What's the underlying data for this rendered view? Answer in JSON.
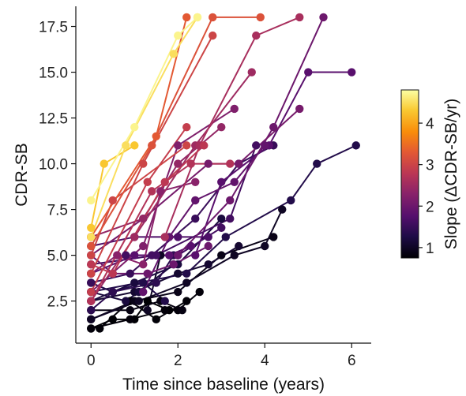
{
  "chart_data": {
    "type": "line",
    "xlabel": "Time since baseline (years)",
    "ylabel": "CDR-SB",
    "xlim": [
      -0.35,
      6.45
    ],
    "ylim": [
      0.2,
      18.6
    ],
    "xticks": [
      0,
      2,
      4,
      6
    ],
    "yticks": [
      2.5,
      5.0,
      7.5,
      10.0,
      12.5,
      15.0,
      17.5
    ],
    "xtick_labels": [
      "0",
      "2",
      "4",
      "6"
    ],
    "ytick_labels": [
      "2.5",
      "5.0",
      "7.5",
      "10.0",
      "12.5",
      "15.0",
      "17.5"
    ],
    "grid": false,
    "colorbar": {
      "label": "Slope (ΔCDR-SB/yr)",
      "range": [
        0.75,
        4.8
      ],
      "ticks": [
        1,
        2,
        3,
        4
      ],
      "tick_labels": [
        "1",
        "2",
        "3",
        "4"
      ],
      "colormap": "inferno",
      "position": "right"
    },
    "series": [
      {
        "slope": 4.7,
        "x": [
          0.0,
          1.0,
          2.0,
          2.45
        ],
        "y": [
          8.0,
          12.0,
          17.0,
          18.0
        ]
      },
      {
        "slope": 4.3,
        "x": [
          0.0,
          0.3,
          1.0
        ],
        "y": [
          6.5,
          10.0,
          11.0
        ]
      },
      {
        "slope": 4.5,
        "x": [
          0.0,
          0.8,
          1.9,
          2.45
        ],
        "y": [
          6.0,
          11.0,
          16.0,
          18.0
        ]
      },
      {
        "slope": 3.2,
        "x": [
          0.0,
          1.4,
          2.8,
          3.9
        ],
        "y": [
          5.5,
          11.0,
          18.0,
          18.0
        ]
      },
      {
        "slope": 3.0,
        "x": [
          0.0,
          1.2,
          2.8
        ],
        "y": [
          4.0,
          10.0,
          17.0
        ]
      },
      {
        "slope": 3.3,
        "x": [
          0.0,
          1.5,
          2.2
        ],
        "y": [
          6.0,
          11.5,
          18.0
        ]
      },
      {
        "slope": 2.9,
        "x": [
          0.0,
          1.3,
          2.2
        ],
        "y": [
          3.0,
          9.0,
          12.0
        ]
      },
      {
        "slope": 3.0,
        "x": [
          0.0,
          0.5,
          2.2
        ],
        "y": [
          5.0,
          8.0,
          11.0
        ]
      },
      {
        "slope": 2.8,
        "x": [
          0.0,
          0.5,
          1.7,
          2.6
        ],
        "y": [
          4.5,
          4.0,
          9.0,
          11.0
        ]
      },
      {
        "slope": 2.6,
        "x": [
          1.7,
          2.5,
          3.8,
          4.8
        ],
        "y": [
          6.0,
          11.0,
          17.0,
          18.0
        ]
      },
      {
        "slope": 2.5,
        "x": [
          0.0,
          1.0,
          2.4,
          3.7
        ],
        "y": [
          2.5,
          6.0,
          11.0,
          15.0
        ]
      },
      {
        "slope": 2.2,
        "x": [
          0.0,
          1.2,
          2.0,
          3.3
        ],
        "y": [
          3.0,
          5.5,
          11.0,
          13.0
        ]
      },
      {
        "slope": 2.0,
        "x": [
          2.0,
          3.2,
          4.2,
          5.35
        ],
        "y": [
          5.0,
          8.0,
          12.0,
          18.0
        ]
      },
      {
        "slope": 1.8,
        "x": [
          2.4,
          3.0,
          4.1,
          5.0,
          6.0
        ],
        "y": [
          5.0,
          9.0,
          11.0,
          15.0,
          15.0
        ]
      },
      {
        "slope": 2.1,
        "x": [
          0.0,
          1.2,
          2.7,
          3.4,
          4.8
        ],
        "y": [
          5.0,
          7.0,
          10.0,
          10.0,
          13.0
        ]
      },
      {
        "slope": 1.9,
        "x": [
          1.2,
          1.8,
          2.4,
          3.3,
          4.0
        ],
        "y": [
          3.0,
          6.0,
          8.0,
          9.0,
          11.0
        ]
      },
      {
        "slope": 2.3,
        "x": [
          0.0,
          0.6,
          1.2,
          1.6,
          2.4
        ],
        "y": [
          4.0,
          5.0,
          4.5,
          8.5,
          9.0
        ]
      },
      {
        "slope": 1.6,
        "x": [
          0.0,
          1.5,
          3.2,
          3.8
        ],
        "y": [
          4.5,
          5.0,
          7.0,
          11.0
        ]
      },
      {
        "slope": 1.5,
        "x": [
          0.0,
          0.9,
          2.4,
          3.4,
          4.2
        ],
        "y": [
          3.5,
          4.0,
          7.0,
          10.0,
          11.0
        ]
      },
      {
        "slope": 1.3,
        "x": [
          0.0,
          2.2,
          3.1,
          4.6,
          5.2,
          6.1
        ],
        "y": [
          3.0,
          4.0,
          6.0,
          8.0,
          10.0,
          11.0
        ]
      },
      {
        "slope": 1.2,
        "x": [
          0.0,
          1.0,
          2.0,
          3.0
        ],
        "y": [
          2.5,
          3.5,
          4.5,
          7.0
        ]
      },
      {
        "slope": 1.0,
        "x": [
          0.0,
          1.1,
          2.2,
          3.3,
          4.0,
          4.4
        ],
        "y": [
          1.5,
          2.5,
          3.5,
          5.0,
          5.5,
          7.5
        ]
      },
      {
        "slope": 1.4,
        "x": [
          0.0,
          0.5,
          1.5,
          1.9
        ],
        "y": [
          2.0,
          3.0,
          3.5,
          5.0
        ]
      },
      {
        "slope": 1.7,
        "x": [
          0.0,
          1.0,
          2.0,
          2.7
        ],
        "y": [
          5.5,
          6.0,
          6.0,
          6.0
        ]
      },
      {
        "slope": 1.8,
        "x": [
          0.0,
          1.0,
          1.8,
          2.3
        ],
        "y": [
          4.0,
          5.0,
          5.0,
          5.5
        ]
      },
      {
        "slope": 1.6,
        "x": [
          0.8,
          1.4,
          2.0,
          3.0
        ],
        "y": [
          5.0,
          5.0,
          5.0,
          6.5
        ]
      },
      {
        "slope": 2.0,
        "x": [
          0.0,
          0.5,
          1.3,
          1.9,
          2.7
        ],
        "y": [
          5.0,
          4.0,
          4.0,
          4.5,
          5.5
        ]
      },
      {
        "slope": 1.1,
        "x": [
          0.0,
          1.0,
          2.0,
          2.7,
          3.4
        ],
        "y": [
          2.5,
          3.0,
          4.0,
          4.5,
          5.5
        ]
      },
      {
        "slope": 0.9,
        "x": [
          0.0,
          1.0,
          2.0,
          3.0,
          4.2
        ],
        "y": [
          1.5,
          2.5,
          3.0,
          5.0,
          6.0
        ]
      },
      {
        "slope": 1.2,
        "x": [
          0.0,
          0.8,
          1.1,
          1.9
        ],
        "y": [
          3.0,
          2.5,
          3.0,
          4.5
        ]
      },
      {
        "slope": 1.0,
        "x": [
          1.3,
          1.6,
          2.0
        ],
        "y": [
          2.0,
          5.0,
          5.0
        ]
      },
      {
        "slope": 1.3,
        "x": [
          0.0,
          0.5,
          1.2,
          1.7
        ],
        "y": [
          3.5,
          3.0,
          3.5,
          2.5
        ]
      },
      {
        "slope": 0.85,
        "x": [
          0.0,
          0.9,
          1.6,
          2.1
        ],
        "y": [
          2.0,
          2.0,
          2.5,
          2.0
        ]
      },
      {
        "slope": 0.8,
        "x": [
          0.0,
          0.9,
          1.7,
          2.0,
          2.5
        ],
        "y": [
          1.0,
          1.5,
          2.0,
          2.0,
          3.0
        ]
      },
      {
        "slope": 0.75,
        "x": [
          0.0,
          0.5,
          1.0,
          1.3,
          1.8
        ],
        "y": [
          1.0,
          1.5,
          1.5,
          2.5,
          2.0
        ]
      },
      {
        "slope": 0.78,
        "x": [
          0.2,
          0.9,
          1.5,
          2.2
        ],
        "y": [
          1.0,
          2.5,
          1.5,
          2.5
        ]
      },
      {
        "slope": 2.4,
        "x": [
          0.0,
          1.2,
          2.0,
          3.0
        ],
        "y": [
          6.0,
          7.0,
          10.0,
          12.0
        ]
      },
      {
        "slope": 2.7,
        "x": [
          0.0,
          1.4,
          2.3,
          3.2
        ],
        "y": [
          2.5,
          8.5,
          10.0,
          10.0
        ]
      }
    ]
  }
}
